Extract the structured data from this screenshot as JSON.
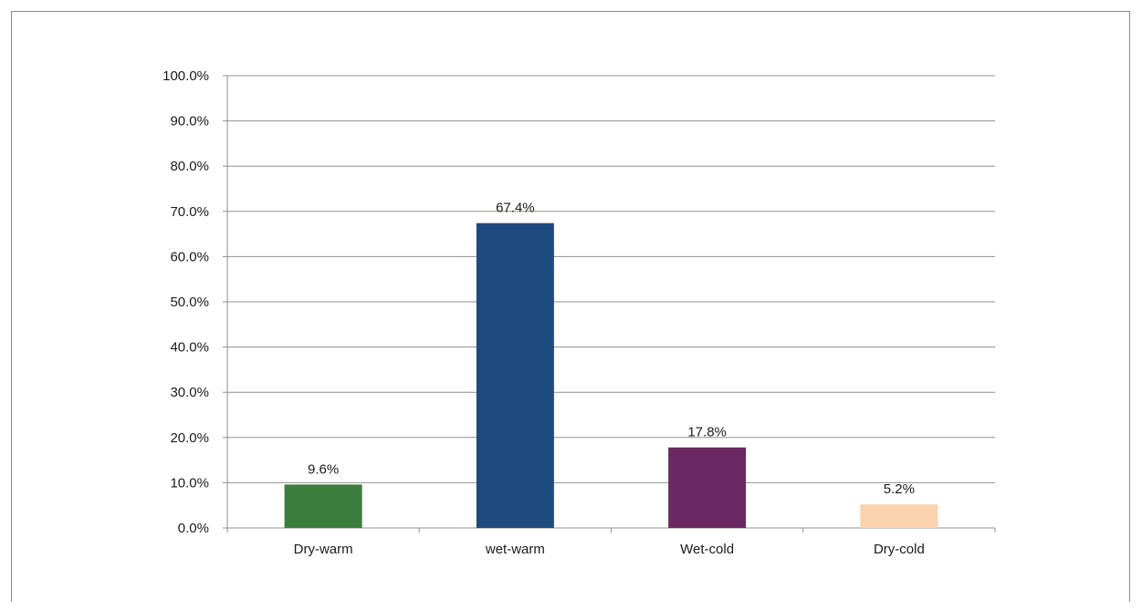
{
  "chart_data": {
    "type": "bar",
    "categories": [
      "Dry-warm",
      "wet-warm",
      "Wet-cold",
      "Dry-cold"
    ],
    "values": [
      9.6,
      67.4,
      17.8,
      5.2
    ],
    "data_labels": [
      "9.6%",
      "67.4%",
      "17.8%",
      "5.2%"
    ],
    "colors": [
      "#3a7d3c",
      "#1f4a7e",
      "#6b2964",
      "#f9d3ad"
    ],
    "y_ticks": [
      "0.0%",
      "10.0%",
      "20.0%",
      "30.0%",
      "40.0%",
      "50.0%",
      "60.0%",
      "70.0%",
      "80.0%",
      "90.0%",
      "100.0%"
    ],
    "ylim": [
      0,
      100
    ],
    "grid": true,
    "title": "",
    "xlabel": "",
    "ylabel": ""
  }
}
